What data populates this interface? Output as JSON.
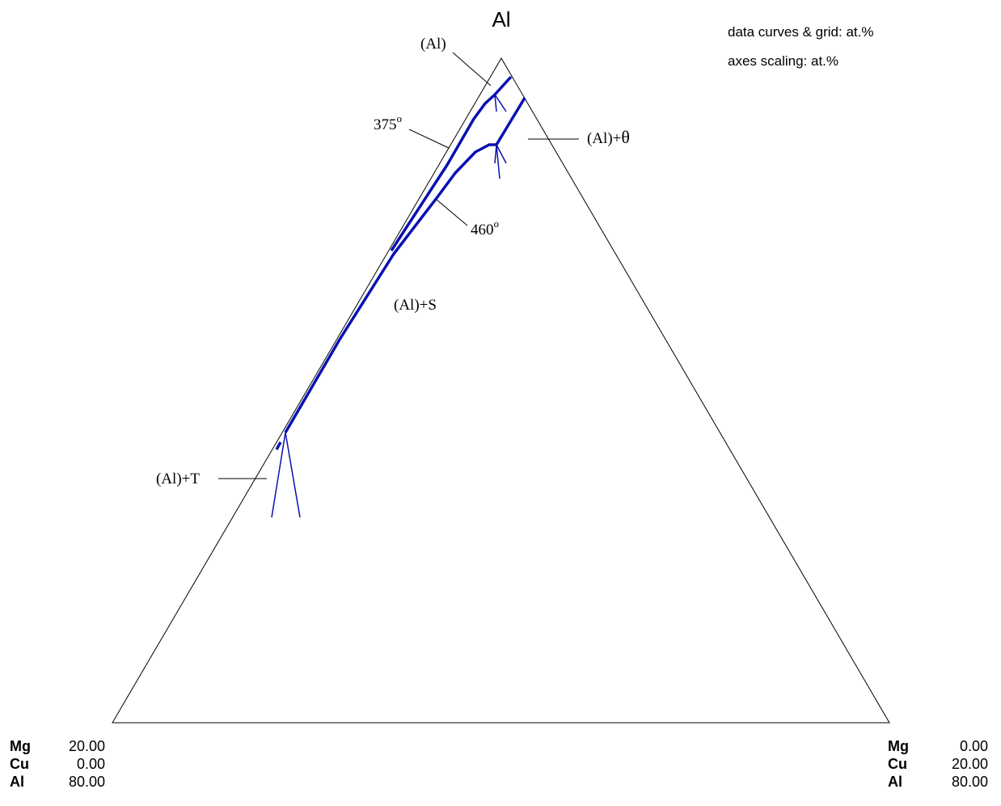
{
  "apex_label": "Al",
  "info": {
    "line1": "data curves & grid: at.%",
    "line2": "axes scaling: at.%"
  },
  "labels": {
    "al": "(Al)",
    "t375": "375",
    "t460": "460",
    "deg": "o",
    "al_theta": "(Al)+",
    "theta": "θ",
    "al_s": "(Al)+S",
    "al_t": "(Al)+T"
  },
  "corner_left": [
    {
      "el": "Mg",
      "val": "20.00"
    },
    {
      "el": "Cu",
      "val": "0.00"
    },
    {
      "el": "Al",
      "val": "80.00"
    }
  ],
  "corner_right": [
    {
      "el": "Mg",
      "val": "0.00"
    },
    {
      "el": "Cu",
      "val": "20.00"
    },
    {
      "el": "Al",
      "val": "80.00"
    }
  ],
  "colors": {
    "curve": "#0a10b4",
    "frame": "#000000"
  }
}
